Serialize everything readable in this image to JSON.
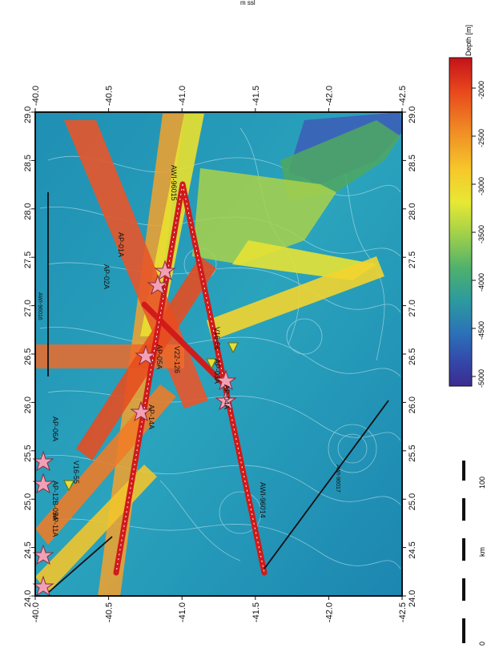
{
  "map": {
    "header_text": "m ssl",
    "left_axis_ticks": [
      "-40.0",
      "-40.5",
      "-41.0",
      "-41.5",
      "-42.0",
      "-42.5"
    ],
    "right_axis_ticks": [
      "-40.0",
      "-40.5",
      "-41.0",
      "-41.5",
      "-42.0",
      "-42.5"
    ],
    "top_axis_ticks": [
      "29.0",
      "28.5",
      "28.0",
      "27.5",
      "27.0",
      "26.5",
      "26.0",
      "25.5",
      "25.0",
      "24.5",
      "24.0"
    ],
    "bottom_axis_ticks": [
      "29.0",
      "28.5",
      "28.0",
      "27.5",
      "27.0",
      "26.5",
      "26.0",
      "25.5",
      "25.0",
      "24.5",
      "24.0"
    ],
    "line_labels": [
      "AWI-96015",
      "AP-01A",
      "AP-02A",
      "AP-05A",
      "AP-14A",
      "V22-126",
      "V16-56",
      "AP-04A",
      "AP-03A",
      "AWI-96014",
      "AP-06A",
      "V16-55",
      "AP-11A",
      "AP-12B-05A",
      "AWI-96016",
      "AWI-96017"
    ]
  },
  "colorbar": {
    "title": "Depth [m]",
    "ticks": [
      "-2000",
      "-2500",
      "-3000",
      "-3500",
      "-4000",
      "-4500",
      "-5000"
    ],
    "colors": [
      "#c4121a",
      "#e8461c",
      "#f08a25",
      "#f6c72a",
      "#e8e833",
      "#9fd04a",
      "#4fb16c",
      "#2c9a9e",
      "#2b71b8",
      "#3446a8",
      "#3b2c8f"
    ]
  },
  "scalebar": {
    "ticks": [
      "0",
      "100"
    ],
    "unit": "km"
  }
}
